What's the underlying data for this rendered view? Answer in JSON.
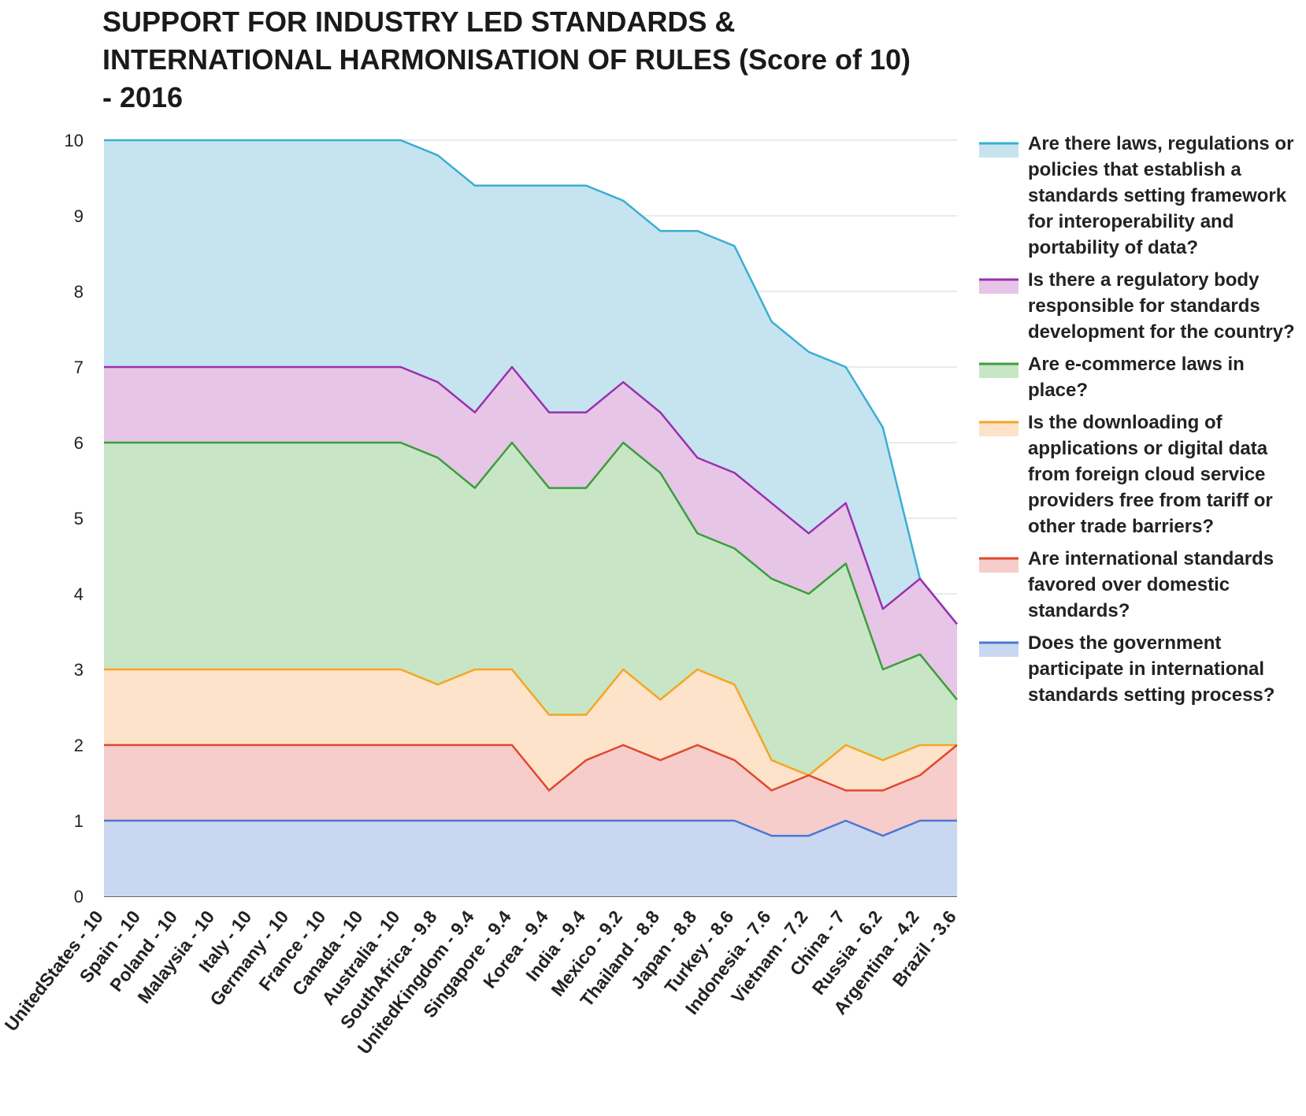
{
  "chart_data": {
    "type": "area",
    "title": "SUPPORT FOR INDUSTRY LED STANDARDS & INTERNATIONAL HARMONISATION OF RULES (Score of 10) - 2016",
    "ylim": [
      0,
      10
    ],
    "yticks": [
      "0",
      "1",
      "2",
      "3",
      "4",
      "5",
      "6",
      "7",
      "8",
      "9",
      "10"
    ],
    "grid": true,
    "legend_position": "right",
    "categories": [
      "UnitedStates - 10",
      "Spain - 10",
      "Poland - 10",
      "Malaysia - 10",
      "Italy - 10",
      "Germany - 10",
      "France - 10",
      "Canada - 10",
      "Australia - 10",
      "SouthAfrica - 9.8",
      "UnitedKingdom - 9.4",
      "Singapore - 9.4",
      "Korea - 9.4",
      "India - 9.4",
      "Mexico - 9.2",
      "Thailand - 8.8",
      "Japan - 8.8",
      "Turkey - 8.6",
      "Indonesia - 7.6",
      "Vietnam - 7.2",
      "China - 7",
      "Russia - 6.2",
      "Argentina - 4.2",
      "Brazil - 3.6"
    ],
    "series": [
      {
        "name": "Are there laws, regulations or policies that establish a standards setting framework for interoperability and portability of data?",
        "color": "#3aaed3",
        "fill": "#c5e4ef",
        "values": [
          10,
          10,
          10,
          10,
          10,
          10,
          10,
          10,
          10,
          9.8,
          9.4,
          9.4,
          9.4,
          9.4,
          9.2,
          8.8,
          8.8,
          8.6,
          7.6,
          7.2,
          7,
          6.2,
          4.2,
          3.6
        ]
      },
      {
        "name": "Is there a regulatory body responsible for standards development for the country?",
        "color": "#9b30b0",
        "fill": "#e7c5e6",
        "values": [
          7,
          7,
          7,
          7,
          7,
          7,
          7,
          7,
          7,
          6.8,
          6.4,
          7,
          6.4,
          6.4,
          6.8,
          6.4,
          5.8,
          5.6,
          5.2,
          4.8,
          5.2,
          3.8,
          4.2,
          3.6
        ]
      },
      {
        "name": "Are e-commerce laws in place?",
        "color": "#3a9e3a",
        "fill": "#c8e6c6",
        "values": [
          6,
          6,
          6,
          6,
          6,
          6,
          6,
          6,
          6,
          5.8,
          5.4,
          6,
          5.4,
          5.4,
          6,
          5.6,
          4.8,
          4.6,
          4.2,
          4,
          4.4,
          3,
          3.2,
          2.6
        ]
      },
      {
        "name": "Is the downloading of applications or digital data from foreign cloud service providers free from tariff or other trade barriers?",
        "color": "#f5a623",
        "fill": "#fde3c9",
        "values": [
          3,
          3,
          3,
          3,
          3,
          3,
          3,
          3,
          3,
          2.8,
          3,
          3,
          2.4,
          2.4,
          3,
          2.6,
          3,
          2.8,
          1.8,
          1.6,
          2,
          1.8,
          2,
          2
        ]
      },
      {
        "name": "Are international standards favored over domestic standards?",
        "color": "#e0482e",
        "fill": "#f6cdca",
        "values": [
          2,
          2,
          2,
          2,
          2,
          2,
          2,
          2,
          2,
          2,
          2,
          2,
          1.4,
          1.8,
          2,
          1.8,
          2,
          1.8,
          1.4,
          1.6,
          1.4,
          1.4,
          1.6,
          2
        ]
      },
      {
        "name": "Does the government participate in international standards setting process?",
        "color": "#4a78d6",
        "fill": "#cad7f0",
        "values": [
          1,
          1,
          1,
          1,
          1,
          1,
          1,
          1,
          1,
          1,
          1,
          1,
          1,
          1,
          1,
          1,
          1,
          1,
          0.8,
          0.8,
          1,
          0.8,
          1,
          1
        ]
      }
    ],
    "legend_lines": [
      [
        "Are there laws, regulations or",
        "policies that establish a",
        "standards setting framework",
        "for interoperability and",
        "portability of data?"
      ],
      [
        "Is there a regulatory body",
        "responsible for standards",
        "development for the country?"
      ],
      [
        "Are e-commerce laws in",
        "place?"
      ],
      [
        "Is the downloading of",
        "applications or digital data",
        "from foreign cloud service",
        "providers free from tariff or",
        "other trade barriers?"
      ],
      [
        "Are international standards",
        "favored over domestic",
        "standards?"
      ],
      [
        "Does the government",
        "participate in international",
        "standards setting process?"
      ]
    ],
    "title_lines": [
      "SUPPORT FOR INDUSTRY LED STANDARDS &",
      "INTERNATIONAL HARMONISATION OF RULES (Score of 10)",
      "- 2016"
    ]
  }
}
